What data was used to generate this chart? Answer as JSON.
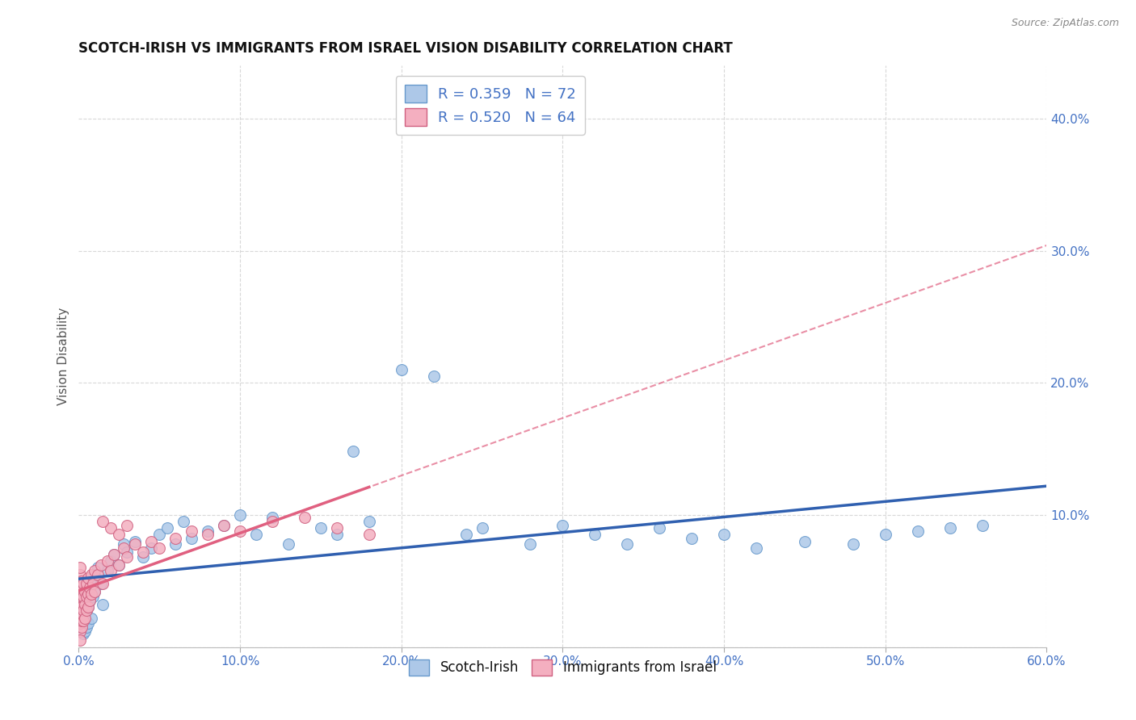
{
  "title": "SCOTCH-IRISH VS IMMIGRANTS FROM ISRAEL VISION DISABILITY CORRELATION CHART",
  "source": "Source: ZipAtlas.com",
  "ylabel": "Vision Disability",
  "xlim": [
    0.0,
    0.6
  ],
  "ylim": [
    0.0,
    0.44
  ],
  "xticks": [
    0.0,
    0.1,
    0.2,
    0.3,
    0.4,
    0.5,
    0.6
  ],
  "yticks": [
    0.0,
    0.1,
    0.2,
    0.3,
    0.4
  ],
  "xticklabels": [
    "0.0%",
    "10.0%",
    "20.0%",
    "30.0%",
    "40.0%",
    "50.0%",
    "60.0%"
  ],
  "yticklabels": [
    "",
    "10.0%",
    "20.0%",
    "30.0%",
    "40.0%"
  ],
  "R_scotch": 0.359,
  "N_scotch": 72,
  "R_israel": 0.52,
  "N_israel": 64,
  "scotch_color": "#adc8e8",
  "israel_color": "#f4afc0",
  "scotch_line_color": "#3060b0",
  "israel_line_color": "#e06080",
  "background_color": "#ffffff",
  "grid_color": "#d8d8d8",
  "scotch_x": [
    0.001,
    0.001,
    0.001,
    0.002,
    0.002,
    0.002,
    0.002,
    0.003,
    0.003,
    0.003,
    0.003,
    0.004,
    0.004,
    0.004,
    0.005,
    0.005,
    0.005,
    0.006,
    0.006,
    0.006,
    0.007,
    0.007,
    0.008,
    0.008,
    0.009,
    0.01,
    0.01,
    0.012,
    0.014,
    0.015,
    0.018,
    0.02,
    0.022,
    0.025,
    0.028,
    0.03,
    0.035,
    0.04,
    0.045,
    0.05,
    0.055,
    0.06,
    0.065,
    0.07,
    0.08,
    0.09,
    0.1,
    0.11,
    0.12,
    0.13,
    0.15,
    0.16,
    0.17,
    0.18,
    0.2,
    0.22,
    0.24,
    0.25,
    0.28,
    0.3,
    0.32,
    0.34,
    0.36,
    0.38,
    0.4,
    0.42,
    0.45,
    0.48,
    0.5,
    0.52,
    0.54,
    0.56
  ],
  "scotch_y": [
    0.03,
    0.025,
    0.02,
    0.035,
    0.028,
    0.022,
    0.015,
    0.04,
    0.032,
    0.018,
    0.01,
    0.038,
    0.025,
    0.012,
    0.045,
    0.028,
    0.015,
    0.042,
    0.03,
    0.018,
    0.05,
    0.035,
    0.048,
    0.022,
    0.038,
    0.055,
    0.042,
    0.06,
    0.048,
    0.032,
    0.058,
    0.065,
    0.07,
    0.062,
    0.078,
    0.072,
    0.08,
    0.068,
    0.075,
    0.085,
    0.09,
    0.078,
    0.095,
    0.082,
    0.088,
    0.092,
    0.1,
    0.085,
    0.098,
    0.078,
    0.09,
    0.085,
    0.148,
    0.095,
    0.21,
    0.205,
    0.085,
    0.09,
    0.078,
    0.092,
    0.085,
    0.078,
    0.09,
    0.082,
    0.085,
    0.075,
    0.08,
    0.078,
    0.085,
    0.088,
    0.09,
    0.092
  ],
  "israel_x": [
    0.001,
    0.001,
    0.001,
    0.001,
    0.001,
    0.001,
    0.001,
    0.001,
    0.001,
    0.001,
    0.001,
    0.002,
    0.002,
    0.002,
    0.002,
    0.002,
    0.002,
    0.002,
    0.003,
    0.003,
    0.003,
    0.003,
    0.004,
    0.004,
    0.004,
    0.005,
    0.005,
    0.005,
    0.006,
    0.006,
    0.006,
    0.007,
    0.007,
    0.008,
    0.008,
    0.009,
    0.01,
    0.01,
    0.012,
    0.014,
    0.015,
    0.018,
    0.02,
    0.022,
    0.025,
    0.028,
    0.03,
    0.035,
    0.04,
    0.045,
    0.05,
    0.06,
    0.07,
    0.08,
    0.09,
    0.1,
    0.12,
    0.14,
    0.16,
    0.18,
    0.02,
    0.015,
    0.025,
    0.03
  ],
  "israel_y": [
    0.012,
    0.018,
    0.025,
    0.03,
    0.035,
    0.04,
    0.045,
    0.05,
    0.055,
    0.06,
    0.005,
    0.015,
    0.02,
    0.025,
    0.03,
    0.038,
    0.045,
    0.05,
    0.02,
    0.028,
    0.038,
    0.048,
    0.022,
    0.032,
    0.042,
    0.028,
    0.038,
    0.048,
    0.03,
    0.04,
    0.052,
    0.035,
    0.045,
    0.04,
    0.055,
    0.048,
    0.042,
    0.058,
    0.055,
    0.062,
    0.048,
    0.065,
    0.058,
    0.07,
    0.062,
    0.075,
    0.068,
    0.078,
    0.072,
    0.08,
    0.075,
    0.082,
    0.088,
    0.085,
    0.092,
    0.088,
    0.095,
    0.098,
    0.09,
    0.085,
    0.09,
    0.095,
    0.085,
    0.092
  ]
}
